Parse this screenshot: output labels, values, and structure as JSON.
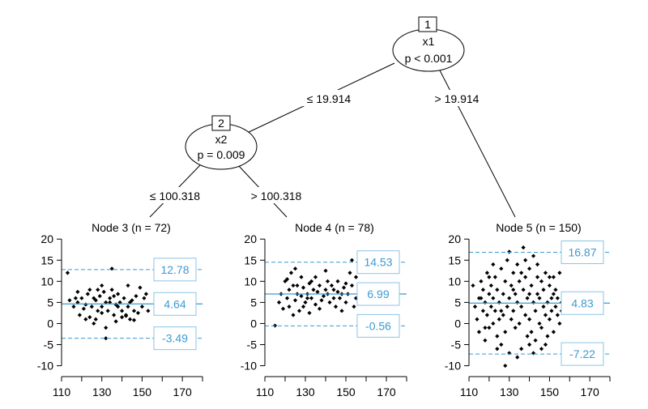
{
  "chart_data": {
    "type": "tree",
    "nodes": [
      {
        "id": "1",
        "variable": "x1",
        "p_text": "p < 0.001"
      },
      {
        "id": "2",
        "variable": "x2",
        "p_text": "p = 0.009"
      }
    ],
    "edges": [
      {
        "from": "1",
        "to": "2",
        "label": "≤ 19.914"
      },
      {
        "from": "1",
        "to": "5",
        "label": "> 19.914"
      },
      {
        "from": "2",
        "to": "3",
        "label": "≤ 100.318"
      },
      {
        "from": "2",
        "to": "4",
        "label": "> 100.318"
      }
    ],
    "xlim": [
      110,
      180
    ],
    "ylim": [
      -12,
      21
    ],
    "xticks": [
      "110",
      "130",
      "150",
      "170"
    ],
    "yticks": [
      "20",
      "15",
      "10",
      "5",
      "0",
      "-5",
      "-10"
    ],
    "panels": [
      {
        "title": "Node 3 (n = 72)",
        "mean": 4.64,
        "upper": 12.78,
        "lower": -3.49,
        "mean_label": "4.64",
        "upper_label": "12.78",
        "lower_label": "-3.49",
        "points": [
          [
            113,
            12
          ],
          [
            114,
            5.5
          ],
          [
            116,
            4
          ],
          [
            117,
            6
          ],
          [
            118,
            5
          ],
          [
            119,
            2
          ],
          [
            120,
            6
          ],
          [
            121,
            3.5
          ],
          [
            122,
            4.5
          ],
          [
            123,
            7
          ],
          [
            124,
            1.5
          ],
          [
            125,
            4
          ],
          [
            126,
            0
          ],
          [
            127,
            5.5
          ],
          [
            128,
            3
          ],
          [
            128,
            8
          ],
          [
            129,
            6.5
          ],
          [
            130,
            4
          ],
          [
            130,
            2.5
          ],
          [
            131,
            7.5
          ],
          [
            132,
            5
          ],
          [
            132,
            -1
          ],
          [
            133,
            3
          ],
          [
            134,
            6
          ],
          [
            135,
            8
          ],
          [
            135,
            13
          ],
          [
            136,
            2
          ],
          [
            137,
            4.5
          ],
          [
            137,
            0.5
          ],
          [
            138,
            7
          ],
          [
            139,
            5
          ],
          [
            140,
            3
          ],
          [
            140,
            1.5
          ],
          [
            141,
            6
          ],
          [
            142,
            2
          ],
          [
            143,
            4
          ],
          [
            143,
            9
          ],
          [
            144,
            1
          ],
          [
            145,
            5.5
          ],
          [
            146,
            3
          ],
          [
            147,
            6.5
          ],
          [
            148,
            2.5
          ],
          [
            149,
            8.5
          ],
          [
            150,
            4
          ],
          [
            151,
            6
          ],
          [
            152,
            7
          ],
          [
            153,
            3
          ],
          [
            132,
            -3.5
          ],
          [
            124,
            8
          ],
          [
            118,
            7.5
          ],
          [
            127,
            1
          ],
          [
            134,
            5
          ],
          [
            138,
            4
          ],
          [
            142,
            1.8
          ],
          [
            144,
            5
          ],
          [
            146,
            0.8
          ],
          [
            136,
            6.5
          ],
          [
            130,
            9
          ],
          [
            126,
            6
          ],
          [
            122,
            1
          ]
        ]
      },
      {
        "title": "Node 4 (n = 78)",
        "mean": 6.99,
        "upper": 14.53,
        "lower": -0.56,
        "mean_label": "6.99",
        "upper_label": "14.53",
        "lower_label": "-0.56",
        "points": [
          [
            115,
            -0.5
          ],
          [
            117,
            5
          ],
          [
            118,
            7
          ],
          [
            119,
            3.5
          ],
          [
            120,
            10
          ],
          [
            121,
            6
          ],
          [
            122,
            8
          ],
          [
            122,
            4
          ],
          [
            123,
            12
          ],
          [
            124,
            9
          ],
          [
            125,
            5.5
          ],
          [
            125,
            13
          ],
          [
            126,
            7
          ],
          [
            127,
            3
          ],
          [
            128,
            6.5
          ],
          [
            128,
            11
          ],
          [
            129,
            8.5
          ],
          [
            130,
            5
          ],
          [
            131,
            7
          ],
          [
            132,
            9.5
          ],
          [
            132,
            2.5
          ],
          [
            133,
            6
          ],
          [
            134,
            8
          ],
          [
            135,
            11
          ],
          [
            135,
            4.5
          ],
          [
            136,
            7.5
          ],
          [
            137,
            9
          ],
          [
            138,
            5.5
          ],
          [
            139,
            6.5
          ],
          [
            140,
            8
          ],
          [
            140,
            12.5
          ],
          [
            141,
            7
          ],
          [
            142,
            5
          ],
          [
            143,
            9
          ],
          [
            144,
            6
          ],
          [
            145,
            4
          ],
          [
            146,
            7.5
          ],
          [
            146,
            10
          ],
          [
            147,
            6
          ],
          [
            148,
            3
          ],
          [
            149,
            8.5
          ],
          [
            150,
            5
          ],
          [
            151,
            7
          ],
          [
            152,
            12
          ],
          [
            153,
            9
          ],
          [
            154,
            4
          ],
          [
            155,
            11
          ],
          [
            155,
            6
          ],
          [
            121,
            10.5
          ],
          [
            124,
            2
          ],
          [
            129,
            4
          ],
          [
            133,
            10
          ],
          [
            137,
            3.5
          ],
          [
            141,
            10
          ],
          [
            144,
            8
          ],
          [
            148,
            7
          ],
          [
            150,
            9.5
          ],
          [
            153,
            15
          ],
          [
            126,
            9
          ],
          [
            131,
            6
          ]
        ]
      },
      {
        "title": "Node 5 (n = 150)",
        "mean": 4.83,
        "upper": 16.87,
        "lower": -7.22,
        "mean_label": "4.83",
        "upper_label": "16.87",
        "lower_label": "-7.22",
        "points": [
          [
            112,
            9
          ],
          [
            113,
            4
          ],
          [
            114,
            1
          ],
          [
            115,
            6
          ],
          [
            115,
            -2
          ],
          [
            116,
            10
          ],
          [
            117,
            3
          ],
          [
            117,
            8
          ],
          [
            118,
            -4
          ],
          [
            118,
            5
          ],
          [
            119,
            2
          ],
          [
            119,
            12
          ],
          [
            120,
            7
          ],
          [
            120,
            -1
          ],
          [
            121,
            4
          ],
          [
            121,
            9
          ],
          [
            122,
            0
          ],
          [
            122,
            6
          ],
          [
            123,
            11
          ],
          [
            123,
            3
          ],
          [
            124,
            -3
          ],
          [
            124,
            8
          ],
          [
            125,
            5
          ],
          [
            125,
            1
          ],
          [
            126,
            13
          ],
          [
            126,
            -5
          ],
          [
            127,
            7
          ],
          [
            127,
            2
          ],
          [
            128,
            10
          ],
          [
            128,
            -2
          ],
          [
            129,
            4
          ],
          [
            129,
            15
          ],
          [
            130,
            6
          ],
          [
            130,
            -7
          ],
          [
            131,
            1
          ],
          [
            131,
            9
          ],
          [
            132,
            12
          ],
          [
            132,
            3
          ],
          [
            133,
            -1
          ],
          [
            133,
            7
          ],
          [
            134,
            5
          ],
          [
            134,
            14
          ],
          [
            135,
            0
          ],
          [
            135,
            10
          ],
          [
            136,
            -6
          ],
          [
            136,
            4
          ],
          [
            137,
            8
          ],
          [
            137,
            18
          ],
          [
            138,
            2
          ],
          [
            138,
            11
          ],
          [
            139,
            -3
          ],
          [
            139,
            6
          ],
          [
            140,
            13
          ],
          [
            140,
            1
          ],
          [
            141,
            9
          ],
          [
            141,
            -2
          ],
          [
            142,
            5
          ],
          [
            142,
            16
          ],
          [
            143,
            3
          ],
          [
            143,
            -4
          ],
          [
            144,
            7
          ],
          [
            144,
            11
          ],
          [
            145,
            0
          ],
          [
            145,
            6
          ],
          [
            146,
            10
          ],
          [
            146,
            -1
          ],
          [
            147,
            4
          ],
          [
            147,
            8
          ],
          [
            148,
            2
          ],
          [
            148,
            12
          ],
          [
            149,
            5
          ],
          [
            149,
            -3
          ],
          [
            150,
            9
          ],
          [
            150,
            1
          ],
          [
            151,
            6
          ],
          [
            151,
            3
          ],
          [
            152,
            11
          ],
          [
            152,
            -2
          ],
          [
            153,
            4
          ],
          [
            153,
            8
          ],
          [
            154,
            2
          ],
          [
            154,
            6
          ],
          [
            155,
            12
          ],
          [
            155,
            0
          ],
          [
            156,
            5
          ],
          [
            156,
            3
          ],
          [
            128,
            -10
          ],
          [
            134,
            -8
          ],
          [
            140,
            -5
          ],
          [
            146,
            -6
          ],
          [
            122,
            14
          ],
          [
            130,
            17
          ],
          [
            138,
            15
          ],
          [
            124,
            -6
          ],
          [
            136,
            12
          ],
          [
            144,
            14
          ],
          [
            116,
            6
          ],
          [
            120,
            11
          ],
          [
            132,
            8
          ],
          [
            142,
            -7
          ],
          [
            150,
            11
          ],
          [
            126,
            3
          ],
          [
            148,
            -5
          ],
          [
            152,
            7
          ],
          [
            118,
            -1
          ],
          [
            140,
            7
          ]
        ]
      }
    ]
  }
}
